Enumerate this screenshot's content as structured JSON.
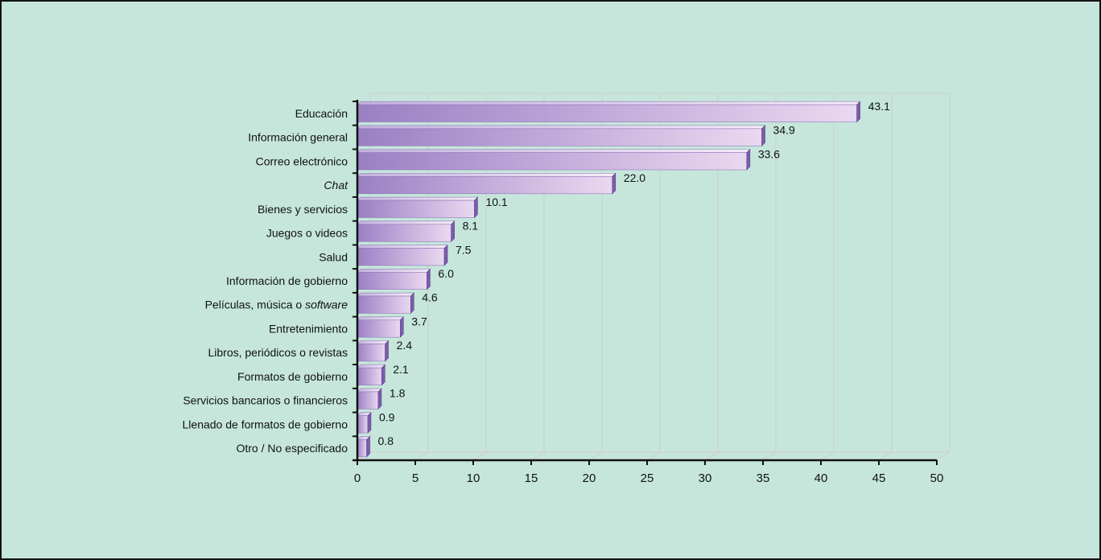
{
  "chart_data": {
    "type": "bar",
    "orientation": "horizontal",
    "title": "",
    "xlabel": "",
    "ylabel": "",
    "categories": [
      "Educación",
      "Información general",
      "Correo electrónico",
      "Chat",
      "Bienes y servicios",
      "Juegos o videos",
      "Salud",
      "Información de gobierno",
      "Películas, música o software",
      "Entretenimiento",
      "Libros, periódicos o revistas",
      "Formatos de gobierno",
      "Servicios bancarios o financieros",
      "Llenado de formatos de gobierno",
      "Otro / No especificado"
    ],
    "values": [
      43.1,
      34.9,
      33.6,
      22.0,
      10.1,
      8.1,
      7.5,
      6.0,
      4.6,
      3.7,
      2.4,
      2.1,
      1.8,
      0.9,
      0.8
    ],
    "value_labels": [
      "43.1",
      "34.9",
      "33.6",
      "22.0",
      "10.1",
      "8.1",
      "7.5",
      "6.0",
      "4.6",
      "3.7",
      "2.4",
      "2.1",
      "1.8",
      "0.9",
      "0.8"
    ],
    "italic_categories": [
      "Chat"
    ],
    "italic_words": [
      "software"
    ],
    "xlim": [
      0,
      50
    ],
    "xticks": [
      0,
      5,
      10,
      15,
      20,
      25,
      30,
      35,
      40,
      45,
      50
    ],
    "grid": true,
    "legend": "none",
    "colors": {
      "background": "#c6e6dc",
      "bar_dark": "#9b7fc4",
      "bar_light": "#ead8f0",
      "bar_cap": "#7a5ea8",
      "grid": "#cfcfcf",
      "axis": "#111111"
    }
  }
}
